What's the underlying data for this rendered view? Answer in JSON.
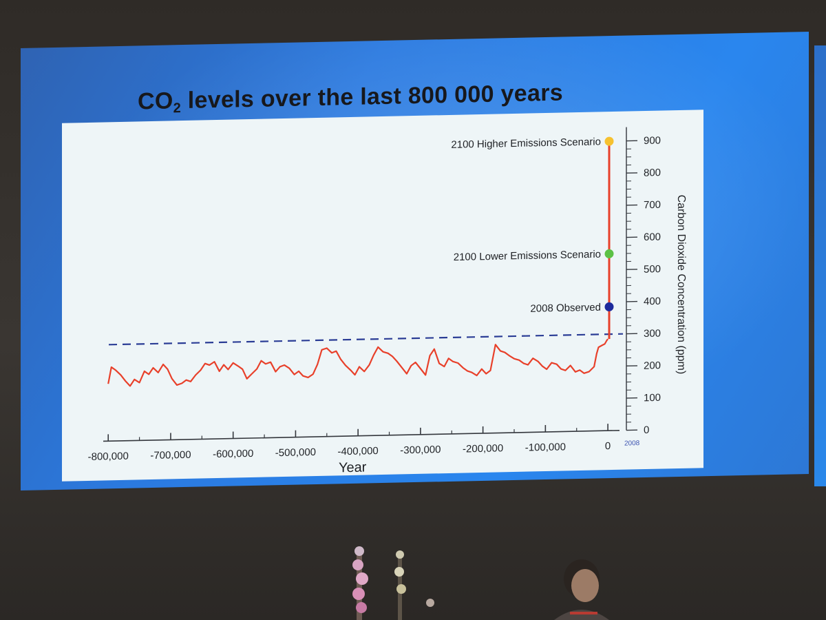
{
  "slide": {
    "title_main": "CO",
    "title_sub": "2",
    "title_rest": " levels over the last 800 000 years"
  },
  "chart_data": {
    "type": "line",
    "xlabel": "Year",
    "ylabel": "Carbon Dioxide Concentration (ppm)",
    "xlim": [
      -830000,
      2100
    ],
    "ylim": [
      0,
      900
    ],
    "x_ticks": [
      {
        "value": -800000,
        "label": "-800,000"
      },
      {
        "value": -700000,
        "label": "-700,000"
      },
      {
        "value": -600000,
        "label": "-600,000"
      },
      {
        "value": -500000,
        "label": "-500,000"
      },
      {
        "value": -400000,
        "label": "-400,000"
      },
      {
        "value": -300000,
        "label": "-300,000"
      },
      {
        "value": -200000,
        "label": "-200,000"
      },
      {
        "value": -100000,
        "label": "-100,000"
      },
      {
        "value": 0,
        "label": "0"
      }
    ],
    "x_extra_label": "2008",
    "y_ticks": [
      0,
      100,
      200,
      300,
      400,
      500,
      600,
      700,
      800,
      900
    ],
    "dashed_reference_ppm": 300,
    "series": [
      {
        "color": "#e8402a",
        "x": [
          -800000,
          -795000,
          -788000,
          -780000,
          -772000,
          -765000,
          -758000,
          -750000,
          -742000,
          -735000,
          -728000,
          -720000,
          -712000,
          -705000,
          -698000,
          -690000,
          -682000,
          -675000,
          -668000,
          -660000,
          -652000,
          -645000,
          -638000,
          -630000,
          -622000,
          -615000,
          -608000,
          -600000,
          -592000,
          -585000,
          -578000,
          -570000,
          -562000,
          -555000,
          -548000,
          -540000,
          -532000,
          -525000,
          -518000,
          -510000,
          -502000,
          -495000,
          -488000,
          -480000,
          -472000,
          -465000,
          -458000,
          -450000,
          -442000,
          -435000,
          -428000,
          -420000,
          -412000,
          -405000,
          -398000,
          -390000,
          -382000,
          -375000,
          -368000,
          -360000,
          -352000,
          -345000,
          -338000,
          -330000,
          -322000,
          -315000,
          -308000,
          -300000,
          -292000,
          -285000,
          -278000,
          -270000,
          -262000,
          -255000,
          -248000,
          -240000,
          -232000,
          -225000,
          -218000,
          -210000,
          -202000,
          -195000,
          -188000,
          -180000,
          -172000,
          -165000,
          -158000,
          -150000,
          -142000,
          -135000,
          -128000,
          -120000,
          -112000,
          -105000,
          -98000,
          -90000,
          -82000,
          -75000,
          -68000,
          -60000,
          -52000,
          -45000,
          -38000,
          -30000,
          -22000,
          -18000,
          -15000,
          -10000,
          -5000,
          -2000,
          0
        ],
        "y": [
          178,
          230,
          220,
          205,
          185,
          170,
          190,
          180,
          215,
          205,
          225,
          210,
          235,
          220,
          190,
          170,
          175,
          185,
          180,
          200,
          215,
          235,
          230,
          240,
          210,
          230,
          215,
          235,
          225,
          215,
          185,
          200,
          215,
          240,
          230,
          235,
          205,
          220,
          225,
          215,
          195,
          205,
          190,
          185,
          195,
          225,
          270,
          275,
          260,
          265,
          240,
          220,
          205,
          190,
          215,
          200,
          220,
          250,
          275,
          260,
          255,
          245,
          230,
          210,
          190,
          215,
          225,
          205,
          185,
          245,
          265,
          220,
          210,
          235,
          225,
          220,
          205,
          195,
          190,
          180,
          200,
          185,
          195,
          275,
          255,
          250,
          240,
          230,
          225,
          215,
          210,
          230,
          220,
          205,
          195,
          215,
          210,
          195,
          190,
          205,
          185,
          190,
          180,
          185,
          200,
          240,
          260,
          265,
          270,
          280,
          285
        ]
      }
    ],
    "rise_line": {
      "color": "#e8402a",
      "from_ppm": 285,
      "to_ppm": 900,
      "x": 2100
    },
    "points": [
      {
        "label": "2100 Higher Emissions Scenario",
        "value": 900,
        "color": "#f6c12f"
      },
      {
        "label": "2100 Lower Emissions Scenario",
        "value": 550,
        "color": "#5cc145"
      },
      {
        "label": "2008 Observed",
        "value": 385,
        "color": "#1d2a9c"
      }
    ],
    "colors": {
      "axis": "#33363c",
      "dashed": "#2a3c95",
      "panel": "#eef5f7"
    }
  }
}
